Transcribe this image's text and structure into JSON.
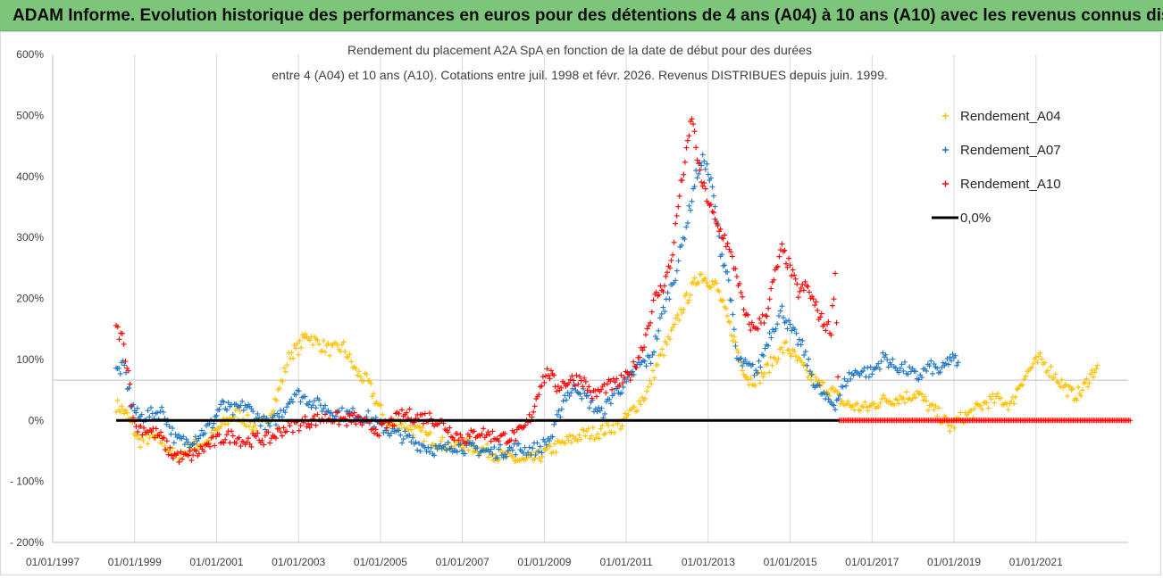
{
  "header": {
    "title": "ADAM Informe. Evolution historique des performances en euros pour des détentions de 4 ans (A04) à 10 ans (A10) avec les revenus connus distribués"
  },
  "chart_data": {
    "type": "scatter",
    "title_line1": "Rendement du placement A2A SpA en fonction de la date de début pour des durées",
    "title_line2": "entre 4 (A04) et 10 ans (A10).  Cotations entre juil. 1998 et févr. 2026. Revenus DISTRIBUES depuis juin. 1999.",
    "xlabel": "",
    "ylabel": "",
    "x_range": [
      "1997-01-01",
      "2023-04-01"
    ],
    "ylim": [
      -200,
      600
    ],
    "y_ticks": [
      -200,
      -100,
      0,
      100,
      200,
      300,
      400,
      500,
      600
    ],
    "y_tick_labels": [
      "- 200%",
      "- 100%",
      "0%",
      "100%",
      "200%",
      "300%",
      "400%",
      "500%",
      "600%"
    ],
    "x_tick_labels": [
      "01/01/1997",
      "01/01/1999",
      "01/01/2001",
      "01/01/2003",
      "01/01/2005",
      "01/01/2007",
      "01/01/2009",
      "01/01/2011",
      "01/01/2013",
      "01/01/2015",
      "01/01/2017",
      "01/01/2019",
      "01/01/2021"
    ],
    "x_tick_years": [
      1997,
      1999,
      2001,
      2003,
      2005,
      2007,
      2009,
      2011,
      2013,
      2015,
      2017,
      2019,
      2021
    ],
    "grid": "vertical at each tick",
    "legend_position": "top-right",
    "marker": "+",
    "series": [
      {
        "name": "Rendement_A04",
        "color": "#ffc000",
        "points": [
          [
            1998.55,
            25
          ],
          [
            1998.75,
            15
          ],
          [
            1998.95,
            -10
          ],
          [
            1999.1,
            -35
          ],
          [
            1999.4,
            -28
          ],
          [
            1999.7,
            -35
          ],
          [
            2000.0,
            -62
          ],
          [
            2000.4,
            -42
          ],
          [
            2000.8,
            -35
          ],
          [
            2001.1,
            -10
          ],
          [
            2001.5,
            12
          ],
          [
            2001.9,
            -10
          ],
          [
            2002.2,
            -5
          ],
          [
            2002.5,
            45
          ],
          [
            2002.8,
            110
          ],
          [
            2003.0,
            118
          ],
          [
            2003.2,
            142
          ],
          [
            2003.5,
            125
          ],
          [
            2003.8,
            115
          ],
          [
            2004.1,
            120
          ],
          [
            2004.4,
            80
          ],
          [
            2004.7,
            62
          ],
          [
            2004.9,
            30
          ],
          [
            2005.2,
            -10
          ],
          [
            2005.5,
            -2
          ],
          [
            2005.8,
            -15
          ],
          [
            2006.1,
            -25
          ],
          [
            2006.4,
            -35
          ],
          [
            2006.7,
            -42
          ],
          [
            2007.0,
            -38
          ],
          [
            2007.3,
            -44
          ],
          [
            2007.6,
            -50
          ],
          [
            2007.9,
            -58
          ],
          [
            2008.2,
            -62
          ],
          [
            2008.5,
            -68
          ],
          [
            2008.8,
            -62
          ],
          [
            2009.1,
            -50
          ],
          [
            2009.4,
            -40
          ],
          [
            2009.7,
            -30
          ],
          [
            2010.0,
            -22
          ],
          [
            2010.3,
            -20
          ],
          [
            2010.6,
            -12
          ],
          [
            2010.9,
            -5
          ],
          [
            2011.2,
            20
          ],
          [
            2011.5,
            45
          ],
          [
            2011.8,
            100
          ],
          [
            2012.1,
            140
          ],
          [
            2012.4,
            190
          ],
          [
            2012.6,
            215
          ],
          [
            2012.8,
            240
          ],
          [
            2013.0,
            230
          ],
          [
            2013.2,
            220
          ],
          [
            2013.4,
            180
          ],
          [
            2013.6,
            140
          ],
          [
            2013.8,
            95
          ],
          [
            2014.0,
            65
          ],
          [
            2014.3,
            72
          ],
          [
            2014.6,
            100
          ],
          [
            2014.9,
            122
          ],
          [
            2015.1,
            105
          ],
          [
            2015.4,
            78
          ],
          [
            2015.7,
            58
          ],
          [
            2016.0,
            50
          ],
          [
            2016.3,
            28
          ],
          [
            2016.6,
            22
          ],
          [
            2016.9,
            20
          ],
          [
            2017.2,
            32
          ],
          [
            2017.5,
            35
          ],
          [
            2017.8,
            38
          ],
          [
            2018.1,
            45
          ],
          [
            2018.4,
            22
          ],
          [
            2018.7,
            5
          ],
          [
            2018.9,
            -12
          ],
          [
            2019.2,
            5
          ],
          [
            2019.5,
            15
          ],
          [
            2019.8,
            30
          ],
          [
            2020.1,
            35
          ],
          [
            2020.4,
            25
          ],
          [
            2020.6,
            60
          ],
          [
            2020.9,
            88
          ],
          [
            2021.1,
            100
          ],
          [
            2021.4,
            78
          ],
          [
            2021.7,
            55
          ],
          [
            2021.9,
            42
          ],
          [
            2022.1,
            45
          ],
          [
            2022.3,
            70
          ],
          [
            2022.5,
            90
          ]
        ]
      },
      {
        "name": "Rendement_A07",
        "color": "#1f77c4",
        "points": [
          [
            1998.55,
            80
          ],
          [
            1998.75,
            88
          ],
          [
            1998.9,
            30
          ],
          [
            1999.1,
            5
          ],
          [
            1999.4,
            10
          ],
          [
            1999.7,
            15
          ],
          [
            2000.0,
            -32
          ],
          [
            2000.3,
            -35
          ],
          [
            2000.6,
            -22
          ],
          [
            2000.9,
            -5
          ],
          [
            2001.1,
            25
          ],
          [
            2001.4,
            15
          ],
          [
            2001.7,
            25
          ],
          [
            2002.0,
            5
          ],
          [
            2002.3,
            -10
          ],
          [
            2002.6,
            15
          ],
          [
            2002.9,
            45
          ],
          [
            2003.2,
            35
          ],
          [
            2003.5,
            25
          ],
          [
            2003.8,
            15
          ],
          [
            2004.1,
            10
          ],
          [
            2004.4,
            10
          ],
          [
            2004.7,
            5
          ],
          [
            2005.0,
            -10
          ],
          [
            2005.3,
            -20
          ],
          [
            2005.6,
            -28
          ],
          [
            2005.9,
            -38
          ],
          [
            2006.2,
            -45
          ],
          [
            2006.5,
            -50
          ],
          [
            2006.8,
            -40
          ],
          [
            2007.1,
            -45
          ],
          [
            2007.4,
            -48
          ],
          [
            2007.7,
            -52
          ],
          [
            2008.0,
            -50
          ],
          [
            2008.3,
            -46
          ],
          [
            2008.6,
            -48
          ],
          [
            2008.9,
            -45
          ],
          [
            2009.2,
            -25
          ],
          [
            2009.5,
            40
          ],
          [
            2009.8,
            55
          ],
          [
            2010.1,
            30
          ],
          [
            2010.4,
            10
          ],
          [
            2010.7,
            45
          ],
          [
            2011.0,
            60
          ],
          [
            2011.3,
            90
          ],
          [
            2011.6,
            100
          ],
          [
            2011.9,
            180
          ],
          [
            2012.2,
            240
          ],
          [
            2012.5,
            330
          ],
          [
            2012.7,
            400
          ],
          [
            2012.9,
            430
          ],
          [
            2013.1,
            380
          ],
          [
            2013.3,
            280
          ],
          [
            2013.5,
            230
          ],
          [
            2013.7,
            100
          ],
          [
            2013.9,
            90
          ],
          [
            2014.2,
            80
          ],
          [
            2014.5,
            140
          ],
          [
            2014.8,
            180
          ],
          [
            2015.0,
            150
          ],
          [
            2015.3,
            120
          ],
          [
            2015.6,
            60
          ],
          [
            2015.9,
            32
          ],
          [
            2016.1,
            28
          ],
          [
            2016.4,
            70
          ],
          [
            2016.7,
            82
          ],
          [
            2017.0,
            78
          ],
          [
            2017.3,
            105
          ],
          [
            2017.5,
            90
          ],
          [
            2017.8,
            85
          ],
          [
            2018.1,
            70
          ],
          [
            2018.4,
            88
          ],
          [
            2018.7,
            80
          ],
          [
            2018.9,
            102
          ],
          [
            2019.1,
            95
          ]
        ]
      },
      {
        "name": "Rendement_A10",
        "color": "#ff0000",
        "points": [
          [
            1998.55,
            150
          ],
          [
            1998.7,
            135
          ],
          [
            1998.85,
            80
          ],
          [
            1999.0,
            -10
          ],
          [
            1999.3,
            -15
          ],
          [
            1999.6,
            -25
          ],
          [
            1999.9,
            -55
          ],
          [
            2000.2,
            -62
          ],
          [
            2000.5,
            -55
          ],
          [
            2000.8,
            -40
          ],
          [
            2001.1,
            -30
          ],
          [
            2001.4,
            -25
          ],
          [
            2001.7,
            -35
          ],
          [
            2002.0,
            -30
          ],
          [
            2002.3,
            -30
          ],
          [
            2002.6,
            -15
          ],
          [
            2002.9,
            -8
          ],
          [
            2003.2,
            -2
          ],
          [
            2003.5,
            2
          ],
          [
            2003.8,
            5
          ],
          [
            2004.1,
            0
          ],
          [
            2004.4,
            3
          ],
          [
            2004.7,
            -10
          ],
          [
            2005.0,
            -15
          ],
          [
            2005.3,
            -2
          ],
          [
            2005.6,
            10
          ],
          [
            2005.9,
            5
          ],
          [
            2006.2,
            5
          ],
          [
            2006.5,
            -5
          ],
          [
            2006.8,
            -22
          ],
          [
            2007.1,
            -30
          ],
          [
            2007.4,
            -18
          ],
          [
            2007.7,
            -25
          ],
          [
            2008.0,
            -28
          ],
          [
            2008.3,
            -25
          ],
          [
            2008.5,
            -15
          ],
          [
            2008.7,
            10
          ],
          [
            2008.9,
            60
          ],
          [
            2009.1,
            80
          ],
          [
            2009.3,
            55
          ],
          [
            2009.6,
            65
          ],
          [
            2009.9,
            70
          ],
          [
            2010.2,
            40
          ],
          [
            2010.5,
            55
          ],
          [
            2010.8,
            60
          ],
          [
            2011.1,
            75
          ],
          [
            2011.4,
            120
          ],
          [
            2011.7,
            200
          ],
          [
            2011.9,
            220
          ],
          [
            2012.1,
            260
          ],
          [
            2012.3,
            370
          ],
          [
            2012.5,
            450
          ],
          [
            2012.6,
            500
          ],
          [
            2012.8,
            400
          ],
          [
            2013.0,
            360
          ],
          [
            2013.2,
            320
          ],
          [
            2013.4,
            300
          ],
          [
            2013.7,
            240
          ],
          [
            2013.9,
            170
          ],
          [
            2014.1,
            150
          ],
          [
            2014.4,
            170
          ],
          [
            2014.6,
            230
          ],
          [
            2014.8,
            280
          ],
          [
            2015.0,
            250
          ],
          [
            2015.2,
            210
          ],
          [
            2015.4,
            220
          ],
          [
            2015.6,
            190
          ],
          [
            2015.8,
            160
          ],
          [
            2016.0,
            150
          ],
          [
            2016.1,
            240
          ],
          [
            2016.2,
            0
          ],
          [
            2023.3,
            0
          ]
        ]
      }
    ],
    "reference_line": {
      "name": "0,0%",
      "value": 0,
      "color": "#000000",
      "x_range": [
        1998.55,
        2016.2
      ]
    }
  }
}
